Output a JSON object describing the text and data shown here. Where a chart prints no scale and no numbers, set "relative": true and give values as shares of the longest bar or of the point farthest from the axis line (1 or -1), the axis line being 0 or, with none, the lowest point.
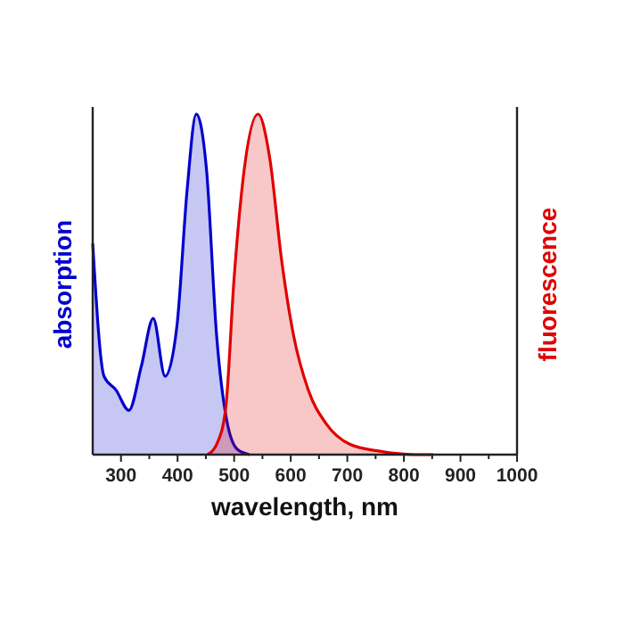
{
  "chart_data": {
    "type": "area",
    "xlabel": "wavelength, nm",
    "ylabel": "absorption",
    "y2label": "fluorescence",
    "relative": true,
    "xlim": [
      250,
      1000
    ],
    "xticks": [
      300,
      {
        "value": 350,
        "label": null
      },
      400,
      {
        "value": 450,
        "label": null
      },
      500,
      {
        "value": 550,
        "label": null
      },
      600,
      {
        "value": 650,
        "label": null
      },
      700,
      {
        "value": 750,
        "label": null
      },
      800,
      {
        "value": 850,
        "label": null
      },
      900,
      {
        "value": 950,
        "label": null
      },
      1000
    ],
    "series": [
      {
        "color": "#0000cc",
        "x": [
          250,
          270,
          291,
          314,
          336,
          357,
          378,
          399,
          417,
          433,
          451,
          469,
          487,
          506,
          527
        ],
        "values": [
          0.62,
          0.23,
          0.19,
          0.13,
          0.26,
          0.4,
          0.23,
          0.38,
          0.78,
          1,
          0.84,
          0.35,
          0.1,
          0.015,
          0
        ]
      },
      {
        "color": "#e00000",
        "x": [
          453,
          469,
          485,
          500,
          518,
          542,
          563,
          584,
          605,
          631,
          663,
          705,
          757,
          820,
          852
        ],
        "values": [
          0,
          0.03,
          0.135,
          0.52,
          0.84,
          1,
          0.87,
          0.57,
          0.35,
          0.19,
          0.09,
          0.03,
          0.01,
          0,
          0
        ]
      }
    ]
  }
}
